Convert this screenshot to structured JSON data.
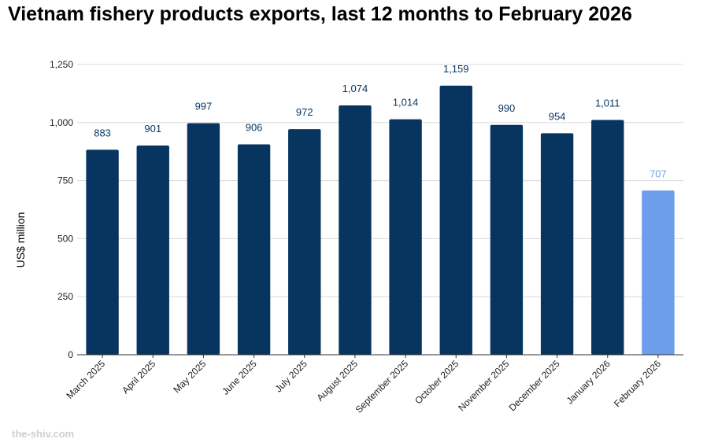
{
  "chart_data": {
    "type": "bar",
    "title": "Vietnam fishery products exports, last 12 months to February 2026",
    "xlabel": "",
    "ylabel": "US$ million",
    "ylim": [
      0,
      1250
    ],
    "yticks": [
      0,
      250,
      500,
      750,
      1000,
      1250
    ],
    "ytick_labels": [
      "0",
      "250",
      "500",
      "750",
      "1,000",
      "1,250"
    ],
    "grid": true,
    "categories": [
      "March 2025",
      "April 2025",
      "May 2025",
      "June 2025",
      "July 2025",
      "August 2025",
      "September 2025",
      "October 2025",
      "November 2025",
      "December 2025",
      "January 2026",
      "February 2026"
    ],
    "values": [
      883,
      901,
      997,
      906,
      972,
      1074,
      1014,
      1159,
      990,
      954,
      1011,
      707
    ],
    "value_labels": [
      "883",
      "901",
      "997",
      "906",
      "972",
      "1,074",
      "1,014",
      "1,159",
      "990",
      "954",
      "1,011",
      "707"
    ],
    "highlight_index": 11
  },
  "colors": {
    "bar": "#08355f",
    "highlight_bar": "#6d9eeb",
    "label": "#08355f",
    "highlight_label": "#6d9eeb",
    "grid": "#d9d9d9",
    "axis": "#333333"
  },
  "watermark": "the-shiv.com"
}
